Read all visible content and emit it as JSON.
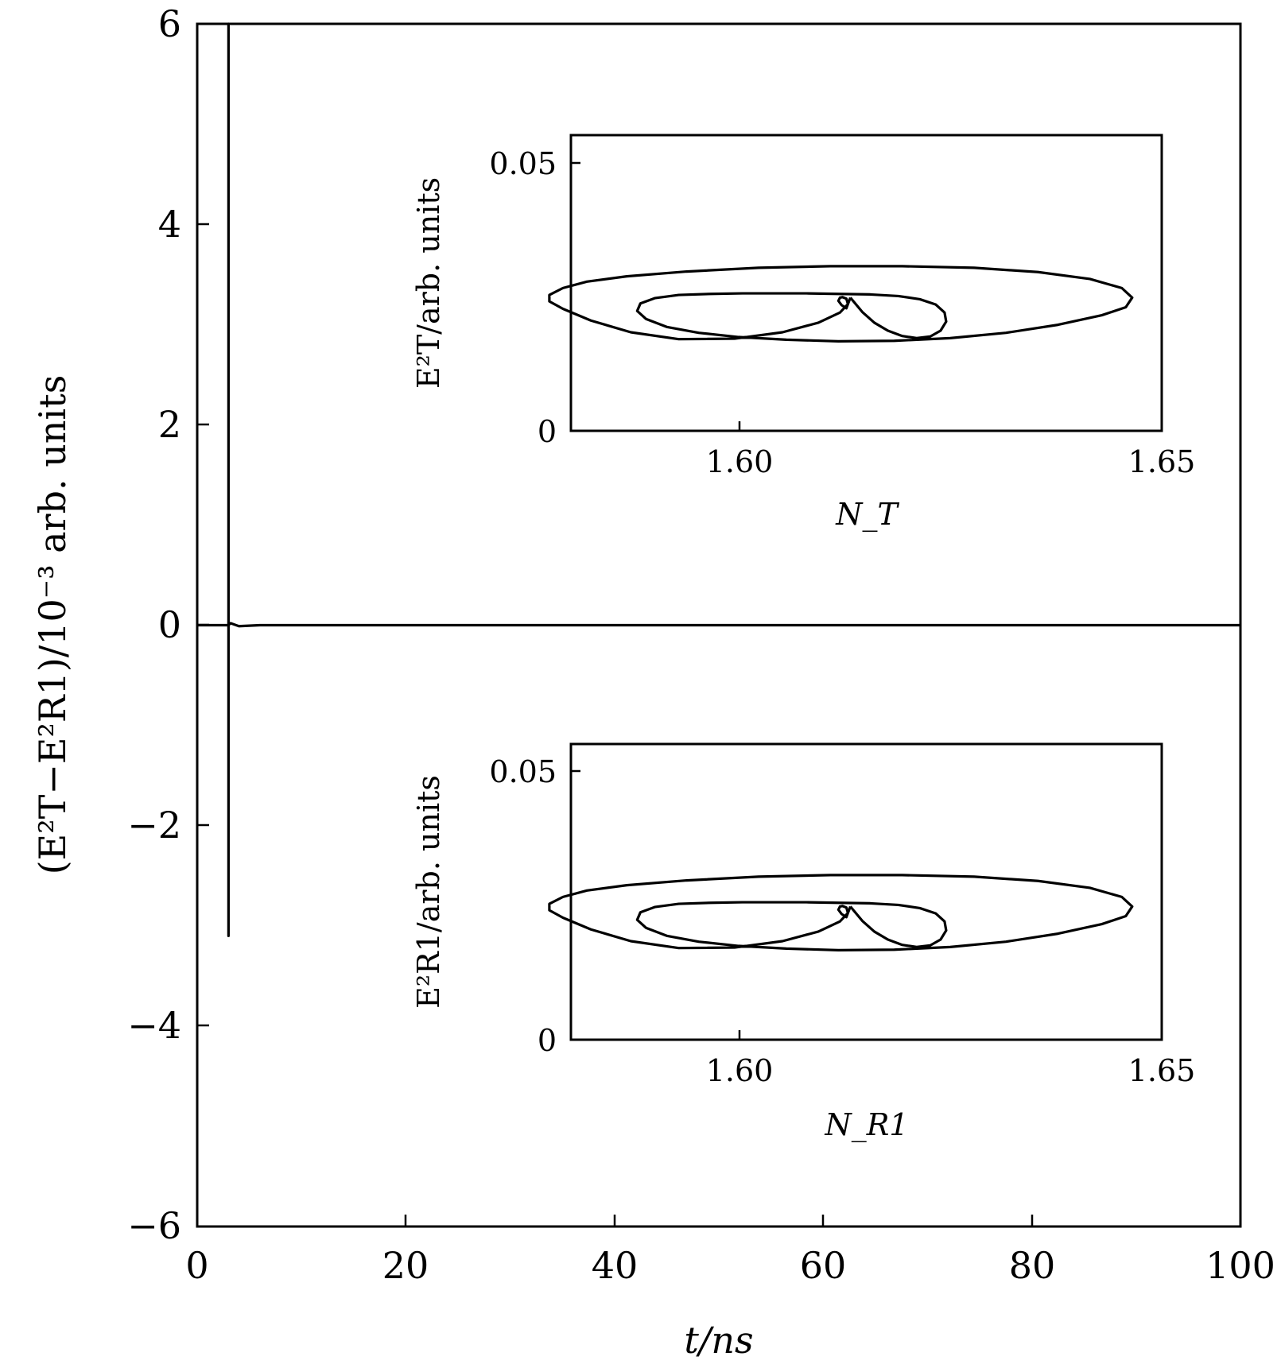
{
  "chart_data": [
    {
      "type": "line",
      "xlabel": "t/ns",
      "ylabel": "(E²T−E²R1)/10⁻³ arb. units",
      "xlim": [
        0,
        100
      ],
      "ylim": [
        -6,
        6
      ],
      "x_ticks": [
        "0",
        "20",
        "40",
        "60",
        "80",
        "100"
      ],
      "y_ticks": [
        "6",
        "4",
        "2",
        "0",
        "−2",
        "−4",
        "−6"
      ],
      "grid": false,
      "series": [
        {
          "x": [
            0,
            3.0,
            3.0,
            3.0,
            3.0,
            3.2,
            4,
            6,
            100
          ],
          "y": [
            0,
            0,
            6,
            -3.1,
            0,
            0.02,
            -0.01,
            0,
            0
          ]
        }
      ]
    },
    {
      "type": "line",
      "xlabel": "N_T",
      "ylabel": "E²T/arb. units",
      "xlim": [
        1.5775,
        1.6515
      ],
      "ylim": [
        0,
        0.0555
      ],
      "x_ticks": [
        "1.60",
        "1.65"
      ],
      "y_ticks": [
        "0.05",
        "0"
      ],
      "grid": false,
      "series": [
        {
          "x": [
            1.6125,
            1.614,
            1.6155,
            1.6172,
            1.619,
            1.6208,
            1.6225,
            1.6238,
            1.6245,
            1.6243,
            1.6232,
            1.6212,
            1.6185,
            1.615,
            1.611,
            1.607,
            1.603,
            1.599,
            1.595,
            1.591,
            1.588,
            1.5862,
            1.5858,
            1.5869,
            1.5895,
            1.5935,
            1.5985,
            1.6045,
            1.611,
            1.618,
            1.625,
            1.632,
            1.6385,
            1.644,
            1.647,
            1.6478,
            1.6465,
            1.6425,
            1.636,
            1.628,
            1.619,
            1.61,
            1.601,
            1.592,
            1.5845,
            1.5795,
            1.5765,
            1.5748,
            1.5748,
            1.5765,
            1.58,
            1.585,
            1.591,
            1.598,
            1.604,
            1.6085,
            1.6112,
            1.6122,
            1.612,
            1.6115,
            1.6112,
            1.611,
            1.6114,
            1.612,
            1.6125
          ],
          "y": [
            0.025,
            0.0223,
            0.0203,
            0.0188,
            0.0178,
            0.0174,
            0.0177,
            0.0188,
            0.0205,
            0.0222,
            0.0237,
            0.0247,
            0.0253,
            0.0256,
            0.0257,
            0.0258,
            0.0258,
            0.0258,
            0.0257,
            0.0255,
            0.0249,
            0.0239,
            0.0225,
            0.021,
            0.0195,
            0.0184,
            0.0176,
            0.0171,
            0.0168,
            0.0169,
            0.0174,
            0.0184,
            0.0199,
            0.0217,
            0.0232,
            0.025,
            0.0268,
            0.0285,
            0.0298,
            0.0306,
            0.0309,
            0.0309,
            0.0306,
            0.0299,
            0.029,
            0.028,
            0.0268,
            0.0255,
            0.0243,
            0.0229,
            0.0207,
            0.0185,
            0.0172,
            0.0173,
            0.0185,
            0.0203,
            0.0222,
            0.0238,
            0.0248,
            0.0251,
            0.025,
            0.0244,
            0.0236,
            0.023,
            0.025
          ]
        }
      ]
    },
    {
      "type": "line",
      "xlabel": "N_R1",
      "ylabel": "E²R1/arb. units",
      "xlim": [
        1.5775,
        1.6515
      ],
      "ylim": [
        0,
        0.0555
      ],
      "x_ticks": [
        "1.60",
        "1.65"
      ],
      "y_ticks": [
        "0.05",
        "0"
      ],
      "grid": false,
      "series": [
        {
          "x": [
            1.6125,
            1.614,
            1.6155,
            1.6172,
            1.619,
            1.6208,
            1.6225,
            1.6238,
            1.6245,
            1.6243,
            1.6232,
            1.6212,
            1.6185,
            1.615,
            1.611,
            1.607,
            1.603,
            1.599,
            1.595,
            1.591,
            1.588,
            1.5862,
            1.5858,
            1.5869,
            1.5895,
            1.5935,
            1.5985,
            1.6045,
            1.611,
            1.618,
            1.625,
            1.632,
            1.6385,
            1.644,
            1.647,
            1.6478,
            1.6465,
            1.6425,
            1.636,
            1.628,
            1.619,
            1.61,
            1.601,
            1.592,
            1.5845,
            1.5795,
            1.5765,
            1.5748,
            1.5748,
            1.5765,
            1.58,
            1.585,
            1.591,
            1.598,
            1.604,
            1.6085,
            1.6112,
            1.6122,
            1.612,
            1.6115,
            1.6112,
            1.611,
            1.6114,
            1.612,
            1.6125
          ],
          "y": [
            0.025,
            0.0223,
            0.0203,
            0.0188,
            0.0178,
            0.0174,
            0.0177,
            0.0188,
            0.0205,
            0.0222,
            0.0237,
            0.0247,
            0.0253,
            0.0256,
            0.0257,
            0.0258,
            0.0258,
            0.0258,
            0.0257,
            0.0255,
            0.0249,
            0.0239,
            0.0225,
            0.021,
            0.0195,
            0.0184,
            0.0176,
            0.0171,
            0.0168,
            0.0169,
            0.0174,
            0.0184,
            0.0199,
            0.0217,
            0.0232,
            0.025,
            0.0268,
            0.0285,
            0.0298,
            0.0306,
            0.0309,
            0.0309,
            0.0306,
            0.0299,
            0.029,
            0.028,
            0.0268,
            0.0255,
            0.0243,
            0.0229,
            0.0207,
            0.0185,
            0.0172,
            0.0173,
            0.0185,
            0.0203,
            0.0222,
            0.0238,
            0.0248,
            0.0251,
            0.025,
            0.0244,
            0.0236,
            0.023,
            0.025
          ]
        }
      ]
    }
  ]
}
